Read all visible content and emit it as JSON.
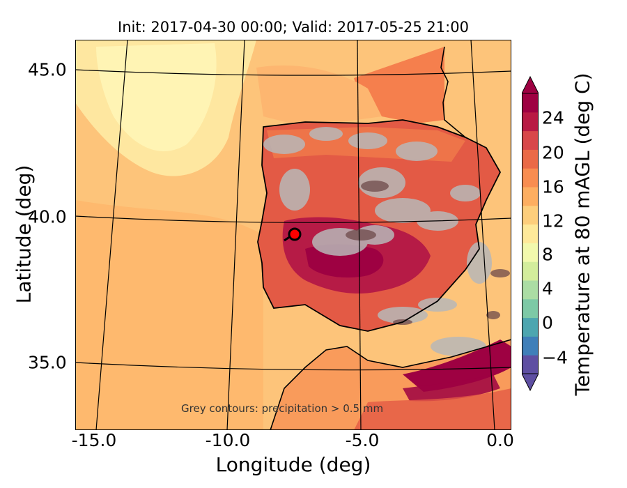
{
  "title": "Init: 2017-04-30 00:00; Valid: 2017-05-25 21:00",
  "xlabel": "Longitude (deg)",
  "ylabel": "Latitude (deg)",
  "xticks": [
    "-15.0",
    "-10.0",
    "-5.0",
    "0.0"
  ],
  "yticks": [
    "45.0",
    "40.0",
    "35.0"
  ],
  "colorbar": {
    "label": "Temperature at 80 mAGL (deg C)",
    "ticks": [
      "24",
      "20",
      "16",
      "12",
      "8",
      "4",
      "0",
      "−4"
    ],
    "colors_low_to_high": [
      "#5e4fa2",
      "#3f7fb9",
      "#4da6b0",
      "#7dc9a6",
      "#abdda4",
      "#d3ed9c",
      "#f2f9ad",
      "#fee99a",
      "#fdce7c",
      "#fdae61",
      "#f88d51",
      "#ea6a47",
      "#d8474a",
      "#b81a44",
      "#9e0142"
    ]
  },
  "annotation": "Grey contours: precipitation > 0.5 mm",
  "map_data": {
    "lon_range": [
      -16,
      0.2
    ],
    "lat_range": [
      32.8,
      46.2
    ],
    "marker": {
      "lon": -7.6,
      "lat": 39.3,
      "color": "#ff0000"
    }
  }
}
